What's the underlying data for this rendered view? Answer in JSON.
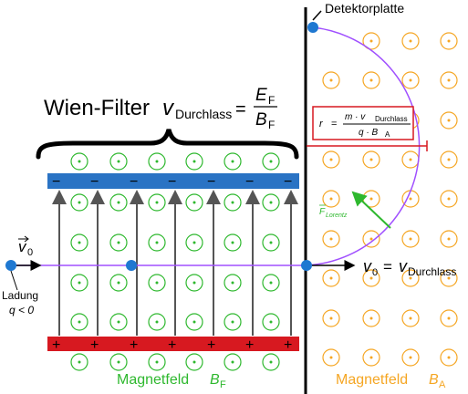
{
  "labels": {
    "detector": "Detektorplatte",
    "wien_title": "Wien-Filter",
    "v_symbol": "v",
    "durchlass_sub": "Durchlass",
    "equals": "=",
    "E_sym": "E",
    "F_sub": "F",
    "B_sym": "B",
    "v0_symbol": "v",
    "zero_sub": "0",
    "ladung": "Ladung",
    "q_lt0": "q < 0",
    "force_label": "F",
    "lorentz_sub": "Lorentz",
    "radius_r": "r",
    "radius_num": "m · v",
    "radius_den": "q · B",
    "A_sub": "A",
    "magnetfeld_F": "Magnetfeld",
    "magnetfeld_A": "Magnetfeld",
    "minus": "−",
    "plus": "+"
  },
  "colors": {
    "plate_top": "#2a73c4",
    "plate_bottom": "#d71920",
    "field_green": "#2eb82e",
    "field_orange": "#f5a623",
    "trajectory": "#a050ff",
    "particle": "#1f78d1",
    "radius_line": "#d71920",
    "arrow": "#555555"
  },
  "icons": [
    "field-out-of-page-icon",
    "particle-dot-icon",
    "curly-brace-icon"
  ]
}
